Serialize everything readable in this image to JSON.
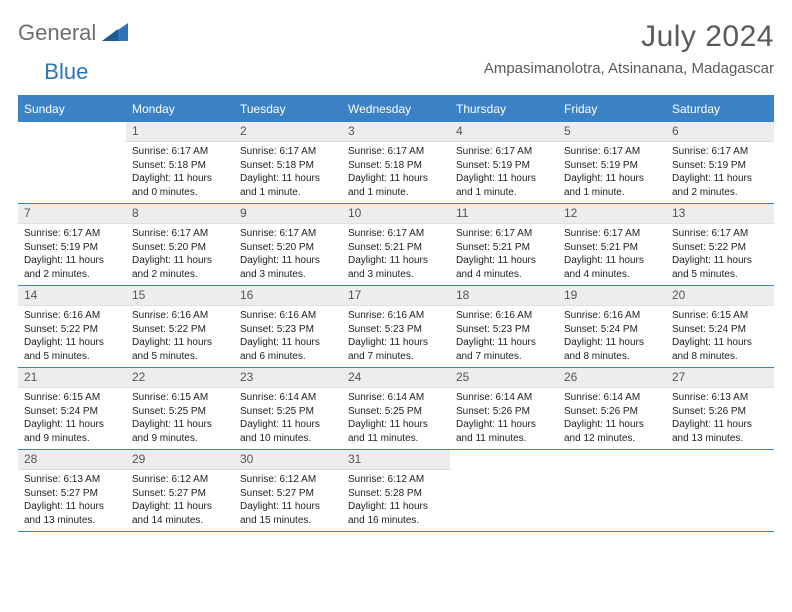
{
  "logo": {
    "part_a": "General",
    "part_b": "Blue"
  },
  "title": "July 2024",
  "location": "Ampasimanolotra, Atsinanana, Madagascar",
  "day_headers": [
    "Sunday",
    "Monday",
    "Tuesday",
    "Wednesday",
    "Thursday",
    "Friday",
    "Saturday"
  ],
  "colors": {
    "accent": "#3b82c4",
    "day_bar_bg": "#ededed",
    "text_muted": "#6d6d6d"
  },
  "weeks": [
    [
      {
        "empty": true
      },
      {
        "n": "1",
        "sunrise": "6:17 AM",
        "sunset": "5:18 PM",
        "daylight": "11 hours and 0 minutes."
      },
      {
        "n": "2",
        "sunrise": "6:17 AM",
        "sunset": "5:18 PM",
        "daylight": "11 hours and 1 minute."
      },
      {
        "n": "3",
        "sunrise": "6:17 AM",
        "sunset": "5:18 PM",
        "daylight": "11 hours and 1 minute."
      },
      {
        "n": "4",
        "sunrise": "6:17 AM",
        "sunset": "5:19 PM",
        "daylight": "11 hours and 1 minute."
      },
      {
        "n": "5",
        "sunrise": "6:17 AM",
        "sunset": "5:19 PM",
        "daylight": "11 hours and 1 minute."
      },
      {
        "n": "6",
        "sunrise": "6:17 AM",
        "sunset": "5:19 PM",
        "daylight": "11 hours and 2 minutes."
      }
    ],
    [
      {
        "n": "7",
        "sunrise": "6:17 AM",
        "sunset": "5:19 PM",
        "daylight": "11 hours and 2 minutes."
      },
      {
        "n": "8",
        "sunrise": "6:17 AM",
        "sunset": "5:20 PM",
        "daylight": "11 hours and 2 minutes."
      },
      {
        "n": "9",
        "sunrise": "6:17 AM",
        "sunset": "5:20 PM",
        "daylight": "11 hours and 3 minutes."
      },
      {
        "n": "10",
        "sunrise": "6:17 AM",
        "sunset": "5:21 PM",
        "daylight": "11 hours and 3 minutes."
      },
      {
        "n": "11",
        "sunrise": "6:17 AM",
        "sunset": "5:21 PM",
        "daylight": "11 hours and 4 minutes."
      },
      {
        "n": "12",
        "sunrise": "6:17 AM",
        "sunset": "5:21 PM",
        "daylight": "11 hours and 4 minutes."
      },
      {
        "n": "13",
        "sunrise": "6:17 AM",
        "sunset": "5:22 PM",
        "daylight": "11 hours and 5 minutes."
      }
    ],
    [
      {
        "n": "14",
        "sunrise": "6:16 AM",
        "sunset": "5:22 PM",
        "daylight": "11 hours and 5 minutes."
      },
      {
        "n": "15",
        "sunrise": "6:16 AM",
        "sunset": "5:22 PM",
        "daylight": "11 hours and 5 minutes."
      },
      {
        "n": "16",
        "sunrise": "6:16 AM",
        "sunset": "5:23 PM",
        "daylight": "11 hours and 6 minutes."
      },
      {
        "n": "17",
        "sunrise": "6:16 AM",
        "sunset": "5:23 PM",
        "daylight": "11 hours and 7 minutes."
      },
      {
        "n": "18",
        "sunrise": "6:16 AM",
        "sunset": "5:23 PM",
        "daylight": "11 hours and 7 minutes."
      },
      {
        "n": "19",
        "sunrise": "6:16 AM",
        "sunset": "5:24 PM",
        "daylight": "11 hours and 8 minutes."
      },
      {
        "n": "20",
        "sunrise": "6:15 AM",
        "sunset": "5:24 PM",
        "daylight": "11 hours and 8 minutes."
      }
    ],
    [
      {
        "n": "21",
        "sunrise": "6:15 AM",
        "sunset": "5:24 PM",
        "daylight": "11 hours and 9 minutes."
      },
      {
        "n": "22",
        "sunrise": "6:15 AM",
        "sunset": "5:25 PM",
        "daylight": "11 hours and 9 minutes."
      },
      {
        "n": "23",
        "sunrise": "6:14 AM",
        "sunset": "5:25 PM",
        "daylight": "11 hours and 10 minutes."
      },
      {
        "n": "24",
        "sunrise": "6:14 AM",
        "sunset": "5:25 PM",
        "daylight": "11 hours and 11 minutes."
      },
      {
        "n": "25",
        "sunrise": "6:14 AM",
        "sunset": "5:26 PM",
        "daylight": "11 hours and 11 minutes."
      },
      {
        "n": "26",
        "sunrise": "6:14 AM",
        "sunset": "5:26 PM",
        "daylight": "11 hours and 12 minutes."
      },
      {
        "n": "27",
        "sunrise": "6:13 AM",
        "sunset": "5:26 PM",
        "daylight": "11 hours and 13 minutes."
      }
    ],
    [
      {
        "n": "28",
        "sunrise": "6:13 AM",
        "sunset": "5:27 PM",
        "daylight": "11 hours and 13 minutes."
      },
      {
        "n": "29",
        "sunrise": "6:12 AM",
        "sunset": "5:27 PM",
        "daylight": "11 hours and 14 minutes."
      },
      {
        "n": "30",
        "sunrise": "6:12 AM",
        "sunset": "5:27 PM",
        "daylight": "11 hours and 15 minutes."
      },
      {
        "n": "31",
        "sunrise": "6:12 AM",
        "sunset": "5:28 PM",
        "daylight": "11 hours and 16 minutes."
      },
      {
        "empty": true
      },
      {
        "empty": true
      },
      {
        "empty": true
      }
    ]
  ],
  "labels": {
    "sunrise_prefix": "Sunrise: ",
    "sunset_prefix": "Sunset: ",
    "daylight_prefix": "Daylight: "
  }
}
